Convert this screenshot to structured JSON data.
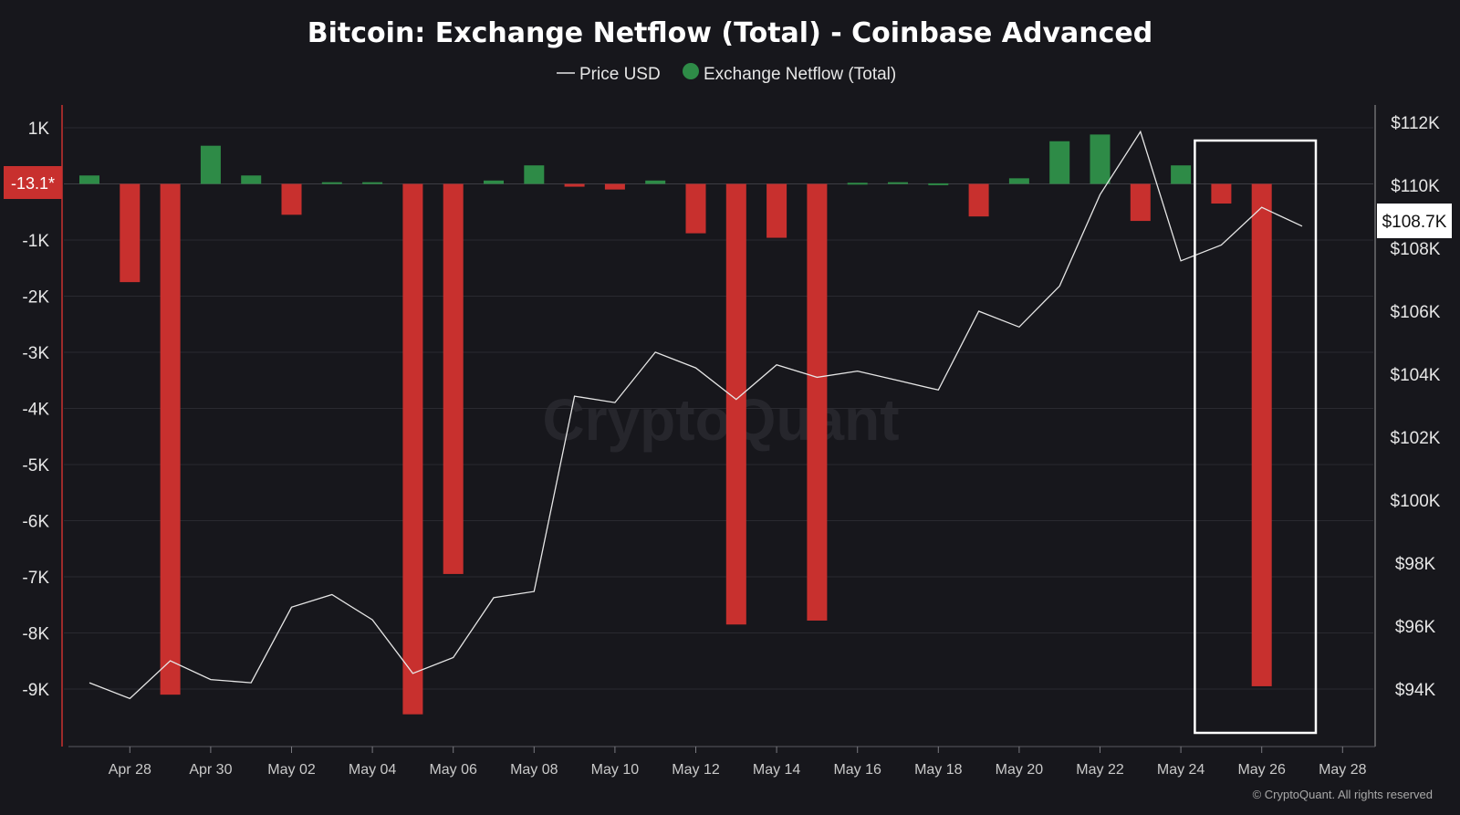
{
  "chart_data": {
    "type": "bar",
    "title": "Bitcoin: Exchange Netflow (Total) - Coinbase Advanced",
    "legend": [
      {
        "name": "Price USD",
        "symbol": "line",
        "color": "#e6e6e6"
      },
      {
        "name": "Exchange Netflow (Total)",
        "symbol": "dot",
        "color": "#2e8b47"
      }
    ],
    "legend_position": "top-center",
    "dates": [
      "Apr 27",
      "Apr 28",
      "Apr 29",
      "Apr 30",
      "May 01",
      "May 02",
      "May 03",
      "May 04",
      "May 05",
      "May 06",
      "May 07",
      "May 08",
      "May 09",
      "May 10",
      "May 11",
      "May 12",
      "May 13",
      "May 14",
      "May 15",
      "May 16",
      "May 17",
      "May 18",
      "May 19",
      "May 20",
      "May 21",
      "May 22",
      "May 23",
      "May 24",
      "May 25",
      "May 26",
      "May 27"
    ],
    "series": [
      {
        "name": "Exchange Netflow (Total)",
        "axis": "left",
        "values": [
          150,
          -1750,
          -9100,
          680,
          150,
          -550,
          30,
          30,
          -9450,
          -6950,
          60,
          330,
          -50,
          -100,
          60,
          -880,
          -7850,
          -960,
          -7780,
          20,
          30,
          10,
          -580,
          100,
          760,
          880,
          -660,
          330,
          -350,
          -8950,
          null
        ]
      },
      {
        "name": "Price USD",
        "axis": "right",
        "type": "line",
        "values": [
          94200,
          93700,
          94900,
          94300,
          94200,
          96600,
          97000,
          96200,
          94500,
          95000,
          96900,
          97100,
          103300,
          103100,
          104700,
          104200,
          103200,
          104300,
          103900,
          104100,
          103800,
          103500,
          106000,
          105500,
          106800,
          109700,
          111700,
          107600,
          108100,
          109300,
          108700
        ]
      }
    ],
    "positive_color": "#2e8b47",
    "negative_color": "#c8302e",
    "left_axis": {
      "ticks": [
        1000,
        -1000,
        -2000,
        -3000,
        -4000,
        -5000,
        -6000,
        -7000,
        -8000,
        -9000
      ],
      "tick_labels": [
        "1K",
        "-1K",
        "-2K",
        "-3K",
        "-4K",
        "-5K",
        "-6K",
        "-7K",
        "-8K",
        "-9K"
      ],
      "range": [
        -10000,
        1300
      ]
    },
    "right_axis": {
      "ticks": [
        112000,
        110000,
        108000,
        106000,
        104000,
        102000,
        100000,
        98000,
        96000,
        94000
      ],
      "tick_labels": [
        "$112K",
        "$110K",
        "$108K",
        "$106K",
        "$104K",
        "$102K",
        "$100K",
        "$98K",
        "$96K",
        "$94K"
      ],
      "range": [
        92800,
        112400
      ]
    },
    "x_tick_labels": [
      "Apr 28",
      "Apr 30",
      "May 02",
      "May 04",
      "May 06",
      "May 08",
      "May 10",
      "May 12",
      "May 14",
      "May 16",
      "May 18",
      "May 20",
      "May 22",
      "May 24",
      "May 26",
      "May 28"
    ],
    "current_value_left": "-13.1*",
    "current_value_right": "$108.7K",
    "highlight_box": {
      "dates": [
        "May 25",
        "May 27"
      ]
    },
    "grid": true,
    "watermark": "CryptoQuant",
    "copyright": "© CryptoQuant. All rights reserved"
  }
}
